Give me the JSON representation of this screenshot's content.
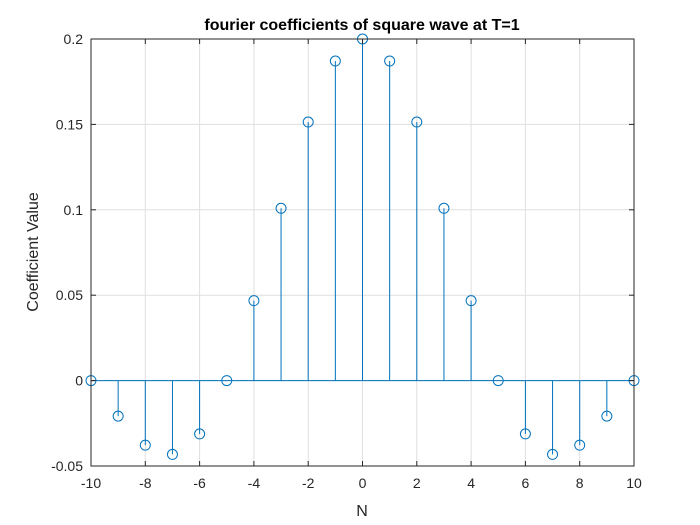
{
  "chart_data": {
    "type": "stem",
    "title": "fourier coefficients of square wave at T=1",
    "xlabel": "N",
    "ylabel": "Coefficient Value",
    "xlim": [
      -10,
      10
    ],
    "ylim": [
      -0.05,
      0.2
    ],
    "grid": true,
    "x_ticks": [
      -10,
      -8,
      -6,
      -4,
      -2,
      0,
      2,
      4,
      6,
      8,
      10
    ],
    "x_tick_labels": [
      "-10",
      "-8",
      "-6",
      "-4",
      "-2",
      "0",
      "2",
      "4",
      "6",
      "8",
      "10"
    ],
    "y_ticks": [
      -0.05,
      0,
      0.05,
      0.1,
      0.15,
      0.2
    ],
    "y_tick_labels": [
      "-0.05",
      "0",
      "0.05",
      "0.1",
      "0.15",
      "0.2"
    ],
    "series": [
      {
        "color": "#0072BD",
        "marker": "circle",
        "x": [
          -10,
          -9,
          -8,
          -7,
          -6,
          -5,
          -4,
          -3,
          -2,
          -1,
          0,
          1,
          2,
          3,
          4,
          5,
          6,
          7,
          8,
          9,
          10
        ],
        "values": [
          0,
          -0.0208,
          -0.0378,
          -0.0432,
          -0.0312,
          0,
          0.0468,
          0.1009,
          0.1514,
          0.1871,
          0.2,
          0.1871,
          0.1514,
          0.1009,
          0.0468,
          0,
          -0.0312,
          -0.0432,
          -0.0378,
          -0.0208,
          0
        ]
      }
    ]
  }
}
